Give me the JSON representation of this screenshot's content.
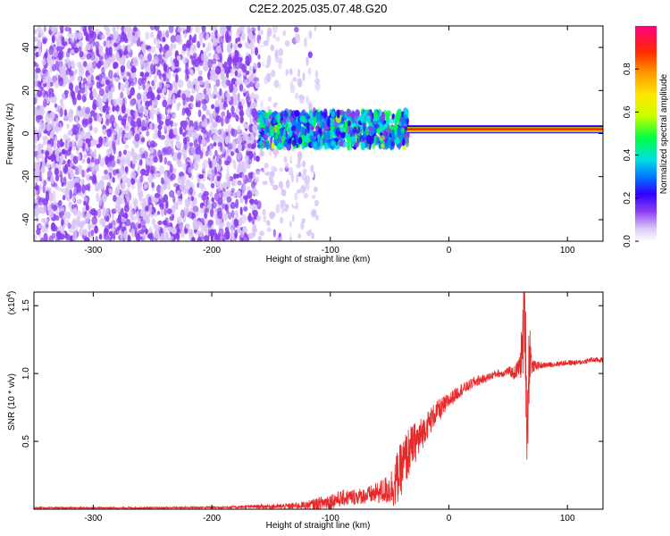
{
  "title": "C2E2.2025.035.07.48.G20",
  "colors": {
    "snr_line": "#e8292a",
    "colormap": [
      "#ffffff",
      "#d9c6f7",
      "#8a3df0",
      "#3000ff",
      "#0078ff",
      "#00e0e0",
      "#00ff40",
      "#c8ff00",
      "#ffe600",
      "#ff9900",
      "#ff2a00",
      "#ff0080"
    ]
  },
  "chart_data": [
    {
      "type": "heatmap",
      "title": "C2E2.2025.035.07.48.G20",
      "xlabel": "Height of straight line (km)",
      "ylabel": "Frequency (Hz)",
      "xlim": [
        -350,
        130
      ],
      "ylim": [
        -50,
        50
      ],
      "x_ticks": [
        {
          "value": -300,
          "label": "-300"
        },
        {
          "value": -200,
          "label": "-200"
        },
        {
          "value": -100,
          "label": "-100"
        },
        {
          "value": 0,
          "label": "0"
        },
        {
          "value": 100,
          "label": "100"
        }
      ],
      "y_ticks": [
        {
          "value": -40,
          "label": "-40"
        },
        {
          "value": -20,
          "label": "-20"
        },
        {
          "value": 0,
          "label": "0"
        },
        {
          "value": 20,
          "label": "20"
        },
        {
          "value": 40,
          "label": "40"
        }
      ],
      "colorbar": {
        "label": "Normalized spectral amplitude",
        "range": [
          0,
          1
        ],
        "ticks": [
          {
            "value": 0.0,
            "label": "0.0"
          },
          {
            "value": 0.2,
            "label": "0.2"
          },
          {
            "value": 0.4,
            "label": "0.4"
          },
          {
            "value": 0.6,
            "label": "0.6"
          },
          {
            "value": 0.8,
            "label": "0.8"
          }
        ]
      },
      "regions": [
        {
          "x_range": [
            -350,
            -160
          ],
          "freq_range": [
            -50,
            50
          ],
          "amplitude": 0.15
        },
        {
          "x_range": [
            -160,
            -110
          ],
          "freq_range": [
            -50,
            50
          ],
          "amplitude": 0.05
        },
        {
          "x_range": [
            -160,
            -35
          ],
          "freq_range": [
            -10,
            10
          ],
          "amplitude": 0.35
        },
        {
          "x_range": [
            -35,
            130
          ],
          "freq_range": [
            1,
            3
          ],
          "amplitude": 0.95
        }
      ]
    },
    {
      "type": "line",
      "xlabel": "Height of straight line (km)",
      "ylabel": "SNR (10 * v/v)",
      "y_multiplier": "(x10",
      "y_multiplier_exp": "4",
      "xlim": [
        -350,
        130
      ],
      "ylim": [
        0,
        1.6
      ],
      "x_ticks": [
        {
          "value": -300,
          "label": "-300"
        },
        {
          "value": -200,
          "label": "-200"
        },
        {
          "value": -100,
          "label": "-100"
        },
        {
          "value": 0,
          "label": "0"
        },
        {
          "value": 100,
          "label": "100"
        }
      ],
      "y_ticks": [
        {
          "value": 0.5,
          "label": "0.5"
        },
        {
          "value": 1.0,
          "label": "1.0"
        },
        {
          "value": 1.5,
          "label": "1.5"
        }
      ],
      "series": [
        {
          "x": [
            -350,
            -250,
            -180,
            -160,
            -140,
            -120,
            -110,
            -100,
            -90,
            -80,
            -70,
            -60,
            -50,
            -45,
            -40,
            -35,
            -30,
            -25,
            -20,
            -15,
            -10,
            -5,
            0,
            5,
            10,
            15,
            20,
            25,
            30,
            35,
            40,
            45,
            50,
            55,
            60,
            62,
            64,
            66,
            68,
            70,
            75,
            80,
            90,
            100,
            110,
            120,
            130
          ],
          "values": [
            0.01,
            0.01,
            0.015,
            0.02,
            0.02,
            0.03,
            0.04,
            0.06,
            0.08,
            0.09,
            0.1,
            0.12,
            0.15,
            0.2,
            0.3,
            0.4,
            0.48,
            0.52,
            0.6,
            0.66,
            0.72,
            0.75,
            0.8,
            0.84,
            0.88,
            0.9,
            0.93,
            0.95,
            0.96,
            0.98,
            1.0,
            1.0,
            1.02,
            1.0,
            1.06,
            1.2,
            1.5,
            0.6,
            1.2,
            1.05,
            1.06,
            1.06,
            1.07,
            1.08,
            1.08,
            1.1,
            1.1
          ],
          "noise": [
            0.005,
            0.005,
            0.01,
            0.015,
            0.02,
            0.03,
            0.05,
            0.06,
            0.06,
            0.06,
            0.06,
            0.08,
            0.12,
            0.2,
            0.2,
            0.2,
            0.15,
            0.15,
            0.1,
            0.1,
            0.08,
            0.08,
            0.06,
            0.05,
            0.05,
            0.04,
            0.04,
            0.04,
            0.03,
            0.03,
            0.03,
            0.03,
            0.03,
            0.05,
            0.08,
            0.3,
            0.35,
            0.4,
            0.3,
            0.05,
            0.03,
            0.02,
            0.02,
            0.02,
            0.02,
            0.02,
            0.02
          ]
        }
      ]
    }
  ]
}
